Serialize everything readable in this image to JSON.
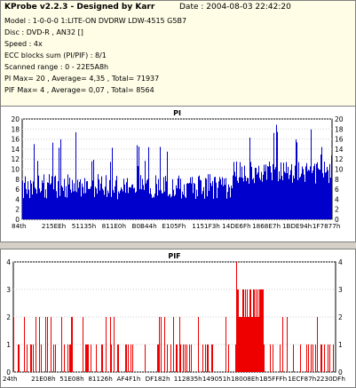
{
  "header": {
    "title": "KProbe v2.2.3 - Designed by Karr",
    "date": "Date : 2004-08-03 22:42:20",
    "lines": [
      "Model : 1-0-0-0 1:LITE-ON DVDRW LDW-4515   G5B7",
      "Disc : DVD-R , AN32 []",
      "Speed : 4x",
      "ECC blocks sum (PI/PIF) : 8/1",
      "Scanned range : 0 - 22E5A8h",
      "PI Max= 20 , Average= 4,35 , Total= 71937",
      "PIF Max= 4 , Average= 0,07 , Total= 8564"
    ]
  },
  "pi_chart": {
    "title": "PI",
    "color": "#0000cc",
    "ylim": [
      0,
      20
    ],
    "yticks": [
      "0",
      "2",
      "4",
      "6",
      "8",
      "10",
      "12",
      "14",
      "16",
      "18",
      "20"
    ],
    "xticks": [
      "84th",
      "215EEh",
      "51135h",
      "811E0h",
      "B0B44h",
      "E105Fh",
      "1151F3h",
      "14DE6Fh",
      "1868E7h",
      "1BDE94h",
      "1F7877h"
    ]
  },
  "pif_chart": {
    "title": "PIF",
    "color": "#ee0000",
    "ylim": [
      0,
      4
    ],
    "yticks": [
      "0",
      "1",
      "2",
      "3",
      "4"
    ],
    "xticks": [
      "24th",
      "21E08h",
      "51E08h",
      "81126h",
      "AF4F1h",
      "DF182h",
      "112835h",
      "149051h",
      "18008Eh",
      "1B5FFFh",
      "1ECF87h",
      "2230DFh"
    ]
  }
}
